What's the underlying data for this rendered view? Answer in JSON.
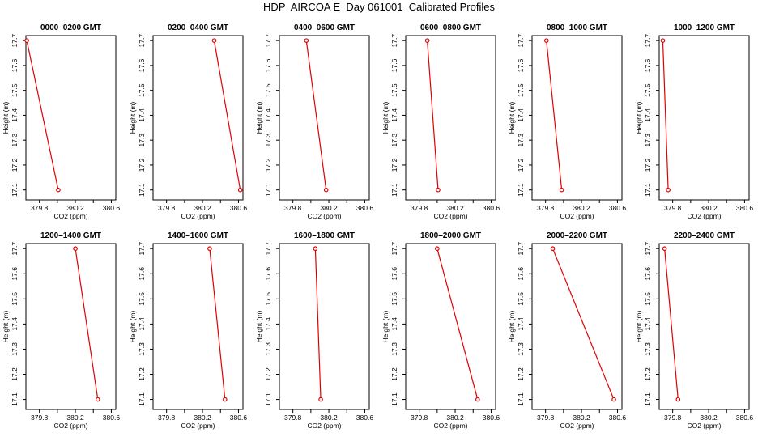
{
  "title": "HDP  AIRCOA E  Day 061001  Calibrated Profiles",
  "chart_data": {
    "type": "line",
    "xlabel": "CO2 (ppm)",
    "ylabel": "Height (m)",
    "xlim": [
      379.65,
      380.65
    ],
    "ylim": [
      17.06,
      17.72
    ],
    "xticks": [
      379.8,
      380.0,
      380.2,
      380.4,
      380.6
    ],
    "xtick_labels": [
      "379.8",
      "",
      "380.2",
      "",
      "380.6"
    ],
    "yticks": [
      17.1,
      17.2,
      17.3,
      17.4,
      17.5,
      17.6,
      17.7
    ],
    "ytick_labels": [
      "17.1",
      "17.2",
      "17.3",
      "17.4",
      "17.5",
      "17.6",
      "17.7"
    ],
    "line_color": "#e00000",
    "panels": [
      {
        "title": "0000–0200 GMT",
        "x": [
          379.66,
          380.01
        ],
        "y": [
          17.7,
          17.1
        ]
      },
      {
        "title": "0200–0400 GMT",
        "x": [
          380.33,
          380.62
        ],
        "y": [
          17.7,
          17.1
        ]
      },
      {
        "title": "0400–0600 GMT",
        "x": [
          379.95,
          380.17
        ],
        "y": [
          17.7,
          17.1
        ]
      },
      {
        "title": "0600–0800 GMT",
        "x": [
          379.89,
          380.01
        ],
        "y": [
          17.7,
          17.1
        ]
      },
      {
        "title": "0800–1000 GMT",
        "x": [
          379.81,
          379.98
        ],
        "y": [
          17.7,
          17.1
        ]
      },
      {
        "title": "1000–1200 GMT",
        "x": [
          379.69,
          379.75
        ],
        "y": [
          17.7,
          17.1
        ]
      },
      {
        "title": "1200–1400 GMT",
        "x": [
          380.2,
          380.45
        ],
        "y": [
          17.7,
          17.1
        ]
      },
      {
        "title": "1400–1600 GMT",
        "x": [
          380.28,
          380.45
        ],
        "y": [
          17.7,
          17.1
        ]
      },
      {
        "title": "1600–1800 GMT",
        "x": [
          380.05,
          380.11
        ],
        "y": [
          17.7,
          17.1
        ]
      },
      {
        "title": "1800–2000 GMT",
        "x": [
          380.0,
          380.45
        ],
        "y": [
          17.7,
          17.1
        ]
      },
      {
        "title": "2000–2200 GMT",
        "x": [
          379.88,
          380.56
        ],
        "y": [
          17.7,
          17.1
        ]
      },
      {
        "title": "2200–2400 GMT",
        "x": [
          379.71,
          379.86
        ],
        "y": [
          17.7,
          17.1
        ]
      }
    ]
  }
}
